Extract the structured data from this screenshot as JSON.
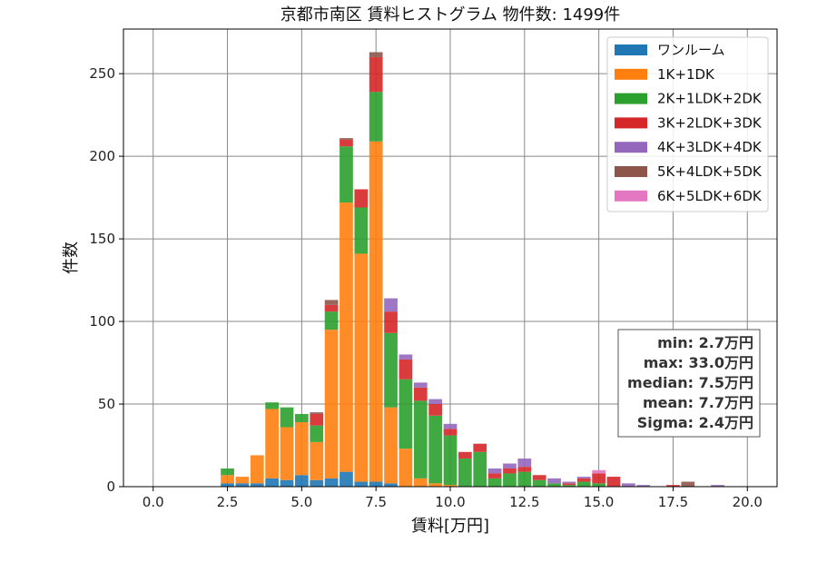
{
  "chart_data": {
    "type": "bar",
    "stacked": true,
    "title": "京都市南区 賃料ヒストグラム  物件数: 1499件",
    "xlabel": "賃料[万円]",
    "ylabel": "件数",
    "xlim": [
      -1.0,
      21.0
    ],
    "ylim": [
      0,
      277
    ],
    "xticks": [
      0.0,
      2.5,
      5.0,
      7.5,
      10.0,
      12.5,
      15.0,
      17.5,
      20.0
    ],
    "yticks": [
      0,
      50,
      100,
      150,
      200,
      250
    ],
    "grid": true,
    "legend_position": "top-right",
    "bin_width": 0.5,
    "x": [
      2.5,
      3.0,
      3.5,
      4.0,
      4.5,
      5.0,
      5.5,
      6.0,
      6.5,
      7.0,
      7.5,
      8.0,
      8.5,
      9.0,
      9.5,
      10.0,
      10.5,
      11.0,
      11.5,
      12.0,
      12.5,
      13.0,
      13.5,
      14.0,
      14.5,
      15.0,
      15.5,
      16.0,
      16.5,
      17.0,
      17.5,
      18.0,
      18.5,
      19.0
    ],
    "series": [
      {
        "name": "ワンルーム",
        "color": "#1f77b4",
        "values": [
          2,
          2,
          2,
          5,
          4,
          7,
          4,
          5,
          9,
          3,
          3,
          2,
          0,
          0,
          0,
          0,
          0,
          0,
          0,
          0,
          0,
          0,
          0,
          0,
          0,
          0,
          0,
          0,
          0,
          0,
          0,
          0,
          0,
          0
        ]
      },
      {
        "name": "1K+1DK",
        "color": "#ff7f0e",
        "values": [
          5,
          4,
          17,
          42,
          32,
          32,
          23,
          90,
          163,
          138,
          206,
          46,
          23,
          5,
          2,
          1,
          0,
          0,
          0,
          0,
          0,
          0,
          0,
          0,
          0,
          0,
          0,
          0,
          0,
          0,
          0,
          0,
          0,
          0
        ]
      },
      {
        "name": "2K+1LDK+2DK",
        "color": "#2ca02c",
        "values": [
          4,
          0,
          0,
          4,
          12,
          5,
          10,
          11,
          34,
          28,
          30,
          45,
          42,
          47,
          41,
          30,
          17,
          21,
          5,
          8,
          9,
          4,
          2,
          1,
          3,
          2,
          0,
          0,
          0,
          0,
          0,
          0,
          0,
          0
        ]
      },
      {
        "name": "3K+2LDK+3DK",
        "color": "#d62728",
        "values": [
          0,
          0,
          0,
          0,
          0,
          0,
          7,
          4,
          4,
          11,
          21,
          13,
          12,
          8,
          7,
          4,
          4,
          5,
          3,
          3,
          3,
          3,
          0,
          1,
          2,
          6,
          6,
          0,
          0,
          0,
          1,
          0,
          0,
          0
        ]
      },
      {
        "name": "4K+3LDK+4DK",
        "color": "#9467bd",
        "values": [
          0,
          0,
          0,
          0,
          0,
          0,
          0,
          0,
          0,
          0,
          0,
          8,
          3,
          3,
          3,
          3,
          0,
          0,
          3,
          3,
          5,
          0,
          3,
          1,
          1,
          0,
          0,
          2,
          1,
          0,
          0,
          0,
          0,
          1
        ]
      },
      {
        "name": "5K+4LDK+5DK",
        "color": "#8c564b",
        "values": [
          0,
          0,
          0,
          0,
          0,
          0,
          1,
          3,
          1,
          0,
          3,
          0,
          0,
          0,
          0,
          0,
          0,
          0,
          0,
          0,
          0,
          0,
          0,
          0,
          0,
          0,
          0,
          0,
          0,
          0,
          0,
          3,
          0,
          0
        ]
      },
      {
        "name": "6K+5LDK+6DK",
        "color": "#e377c2",
        "values": [
          0,
          0,
          0,
          0,
          0,
          0,
          0,
          0,
          0,
          0,
          0,
          0,
          0,
          0,
          0,
          0,
          0,
          0,
          0,
          0,
          0,
          0,
          0,
          0,
          0,
          2,
          0,
          0,
          0,
          0,
          0,
          0,
          0,
          0
        ]
      }
    ],
    "annotations": [
      "min: 2.7万円",
      "max: 33.0万円",
      "median: 7.5万円",
      "mean: 7.7万円",
      "Sigma: 2.4万円"
    ]
  }
}
